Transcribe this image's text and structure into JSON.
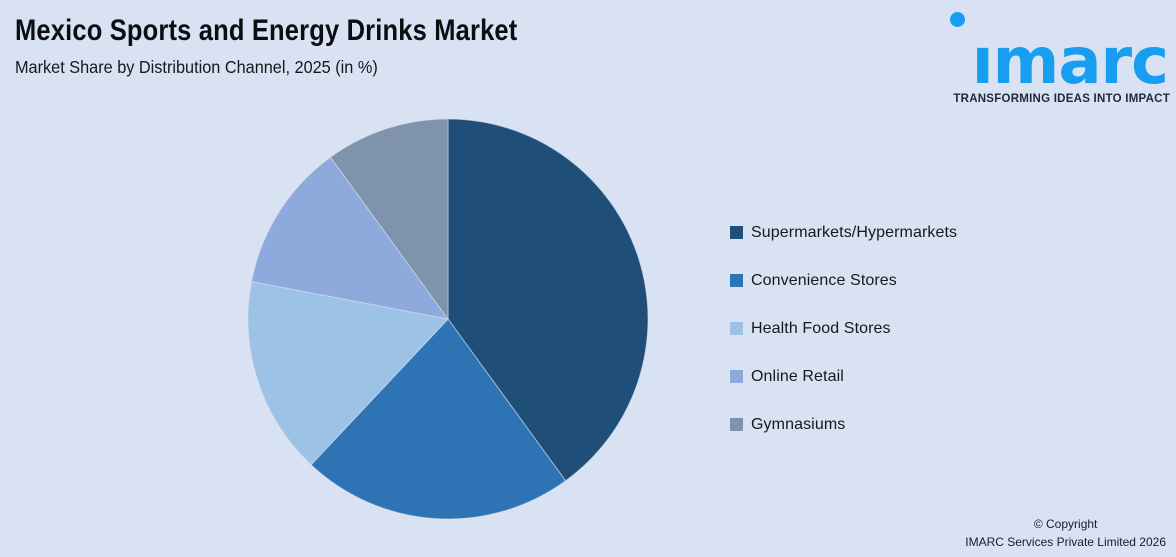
{
  "page": {
    "background_color": "#d9e2f2"
  },
  "header": {
    "title": "Mexico Sports and Energy Drinks Market",
    "subtitle": "Market Share by Distribution Channel, 2025 (in %)"
  },
  "logo": {
    "wordmark": "imarc",
    "tagline": "TRANSFORMING IDEAS INTO IMPACT",
    "brand_color": "#189ef0",
    "tagline_color": "#1d2a3d"
  },
  "chart_data": {
    "type": "pie",
    "title": "Market Share by Distribution Channel, 2025 (in %)",
    "start_angle_deg": 0,
    "direction": "clockwise",
    "legend_position": "right",
    "data_labels_shown": false,
    "slices": [
      {
        "label": "Supermarkets/Hypermarkets",
        "value": 40,
        "color": "#1f4e79"
      },
      {
        "label": "Convenience Stores",
        "value": 22,
        "color": "#2e74b5"
      },
      {
        "label": "Health Food Stores",
        "value": 16,
        "color": "#9cc2e5"
      },
      {
        "label": "Online Retail",
        "value": 12,
        "color": "#8ea9db"
      },
      {
        "label": "Gymnasiums",
        "value": 10,
        "color": "#8093ad"
      }
    ]
  },
  "footer": {
    "copyright_line1": "© Copyright",
    "copyright_line2": "IMARC Services Private Limited 2026"
  }
}
